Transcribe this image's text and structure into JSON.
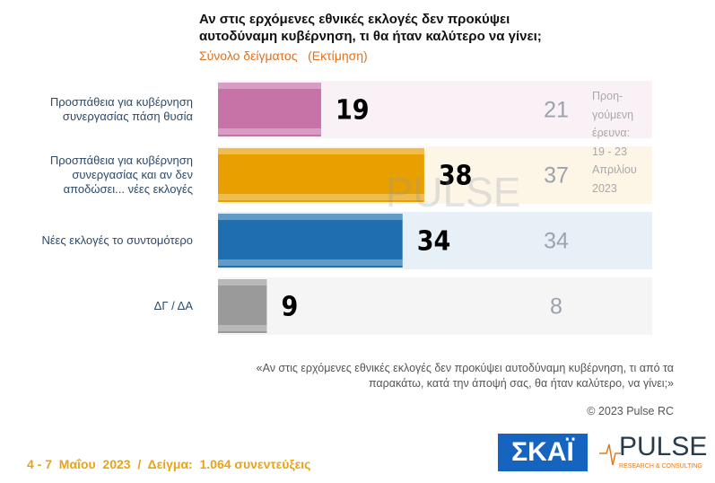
{
  "chart_data": {
    "type": "bar",
    "title": "Αν στις ερχόμενες εθνικές εκλογές δεν προκύψει αυτοδύναμη κυβέρνηση, τι θα ήταν καλύτερο να γίνει;",
    "subtitle": "Σύνολο δείγματος   (Εκτίμηση)",
    "categories": [
      "Προσπάθεια για κυβέρνηση συνεργασίας πάση θυσία",
      "Προσπάθεια για κυβέρνηση συνεργασίας και αν δεν αποδώσει... νέες εκλογές",
      "Νέες εκλογές το συντομότερο",
      "ΔΓ / ΔΑ"
    ],
    "values": [
      19,
      38,
      34,
      9
    ],
    "colors": [
      "#c873a8",
      "#e8a000",
      "#1f6fb0",
      "#9a9a9a"
    ],
    "previous_values": [
      21,
      37,
      34,
      8
    ],
    "previous_label": [
      "Προη-",
      "γούμενη",
      "έρευνα:",
      "19 - 23",
      "Απριλίου",
      "2023"
    ],
    "note": "«Αν στις ερχόμενες εθνικές εκλογές δεν προκύψει αυτοδύναμη κυβέρνηση, τι από τα παρακάτω, κατά την άποψή σας, θα ήταν καλύτερο, να γίνει;»",
    "copyright": "© 2023 Pulse RC",
    "footer": "4 - 7  Μαΐου  2023  /  Δείγμα:  1.064 συνεντεύξεις",
    "logos": {
      "skai": "ΣΚΑΪ",
      "pulse": "PULSE",
      "pulse_sub": "RESEARCH & CONSULTING"
    }
  }
}
